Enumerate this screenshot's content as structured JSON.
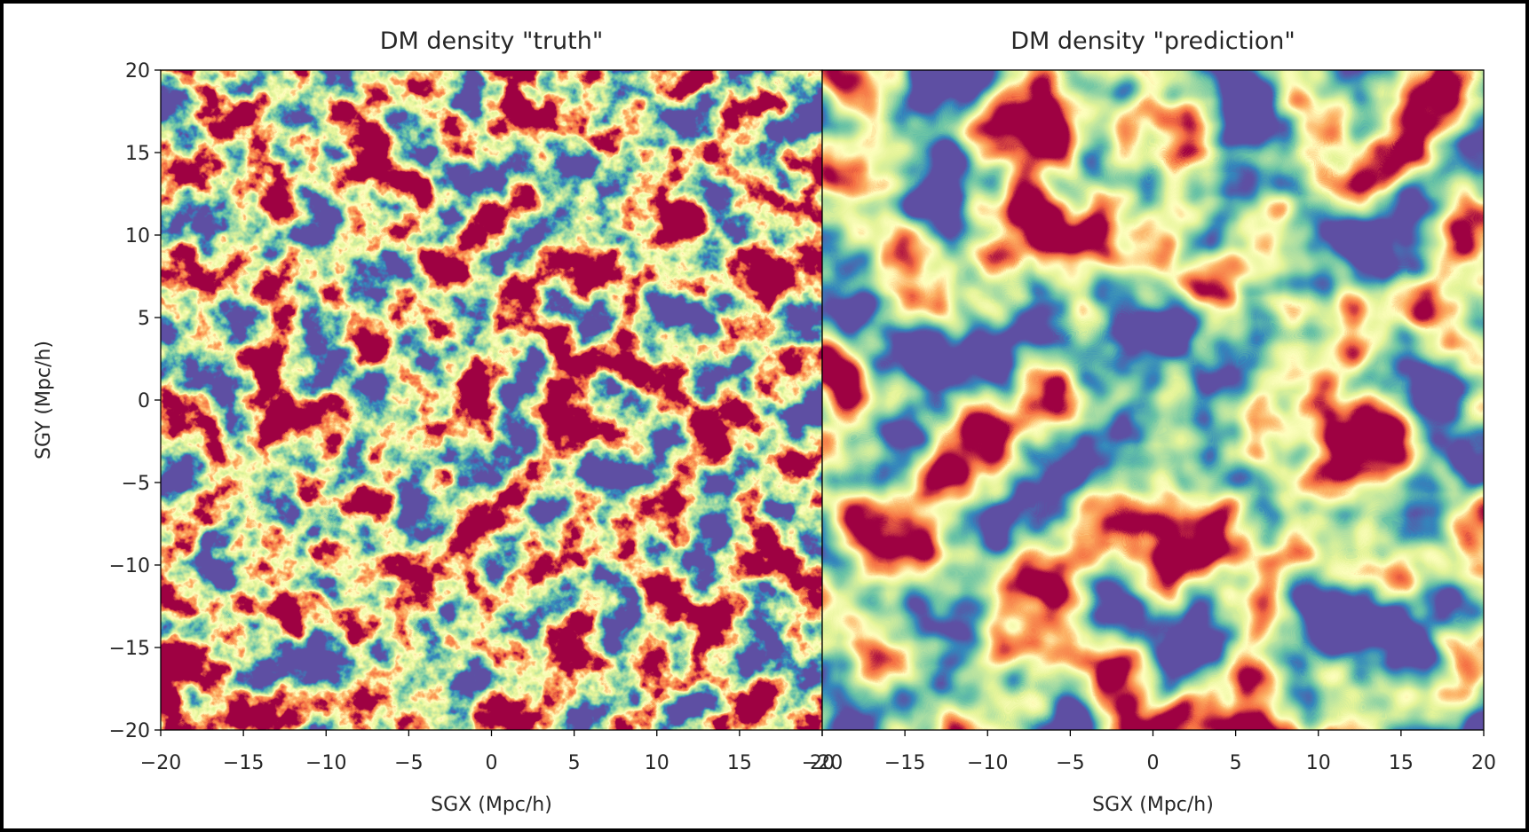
{
  "chart_data": [
    {
      "type": "heatmap",
      "title": "DM density \"truth\"",
      "xlabel": "SGX (Mpc/h)",
      "ylabel": "SGY (Mpc/h)",
      "colormap": "Spectral_r",
      "xlim": [
        -20,
        20
      ],
      "ylim": [
        -20,
        20
      ],
      "xticks": [
        {
          "value": -20,
          "label": "−20"
        },
        {
          "value": -15,
          "label": "−15"
        },
        {
          "value": -10,
          "label": "−10"
        },
        {
          "value": -5,
          "label": "−5"
        },
        0,
        5,
        10,
        15,
        20
      ],
      "yticks": [
        {
          "value": -20,
          "label": "−20"
        },
        {
          "value": -15,
          "label": "−15"
        },
        {
          "value": -10,
          "label": "−10"
        },
        {
          "value": -5,
          "label": "−5"
        },
        0,
        5,
        10,
        15,
        20
      ]
    },
    {
      "type": "heatmap",
      "title": "DM density \"prediction\"",
      "xlabel": "SGX (Mpc/h)",
      "colormap": "Spectral_r",
      "xlim": [
        -20,
        20
      ],
      "xticks": [
        {
          "value": -20,
          "label": "−20"
        },
        {
          "value": -15,
          "label": "−15"
        },
        {
          "value": -10,
          "label": "−10"
        },
        {
          "value": -5,
          "label": "−5"
        },
        0,
        5,
        10,
        15,
        20
      ]
    }
  ]
}
